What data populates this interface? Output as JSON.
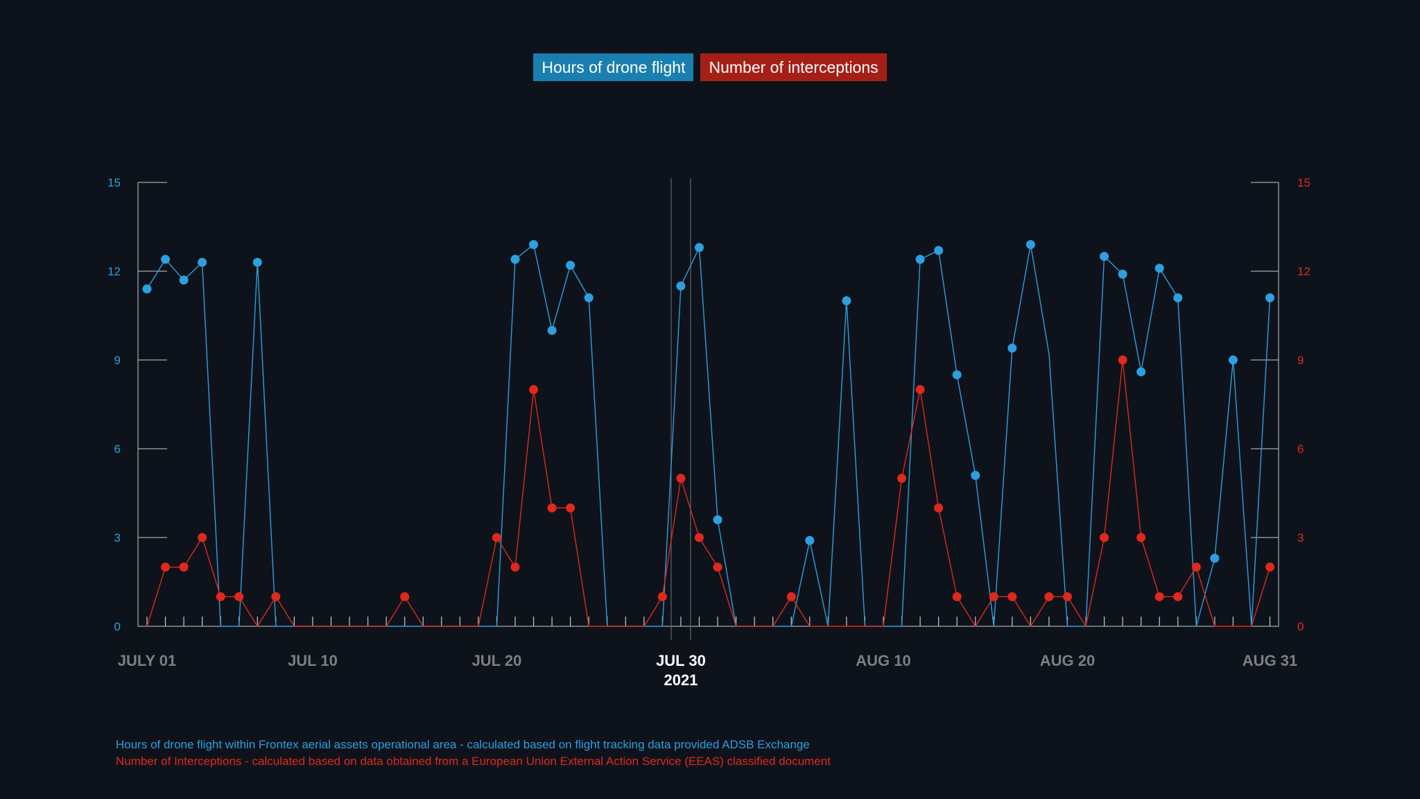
{
  "legend": {
    "hours_label": "Hours of drone flight",
    "intercepts_label": "Number of interceptions"
  },
  "notes": {
    "hours": "Hours of drone flight within Frontex aerial assets operational area - calculated based on flight tracking data provided ADSB Exchange",
    "intercepts": "Number of Interceptions - calculated based on data obtained from a European Union External Action Service (EEAS) classified document"
  },
  "colors": {
    "background": "#0e131b",
    "hours": "#2e9fe0",
    "intercepts": "#e0281d",
    "axis": "#c8ccd2",
    "date_label": "#7b7f86",
    "highlight": "#ffffff"
  },
  "chart_data": {
    "type": "line",
    "x": [
      "2021-07-01",
      "2021-07-02",
      "2021-07-03",
      "2021-07-04",
      "2021-07-05",
      "2021-07-06",
      "2021-07-07",
      "2021-07-08",
      "2021-07-09",
      "2021-07-10",
      "2021-07-11",
      "2021-07-12",
      "2021-07-13",
      "2021-07-14",
      "2021-07-15",
      "2021-07-16",
      "2021-07-17",
      "2021-07-18",
      "2021-07-19",
      "2021-07-20",
      "2021-07-21",
      "2021-07-22",
      "2021-07-23",
      "2021-07-24",
      "2021-07-25",
      "2021-07-26",
      "2021-07-27",
      "2021-07-28",
      "2021-07-29",
      "2021-07-30",
      "2021-07-31",
      "2021-08-01",
      "2021-08-02",
      "2021-08-03",
      "2021-08-04",
      "2021-08-05",
      "2021-08-06",
      "2021-08-07",
      "2021-08-08",
      "2021-08-09",
      "2021-08-10",
      "2021-08-11",
      "2021-08-12",
      "2021-08-13",
      "2021-08-14",
      "2021-08-15",
      "2021-08-16",
      "2021-08-17",
      "2021-08-18",
      "2021-08-19",
      "2021-08-20",
      "2021-08-21",
      "2021-08-22",
      "2021-08-23",
      "2021-08-24",
      "2021-08-25",
      "2021-08-26",
      "2021-08-27",
      "2021-08-28",
      "2021-08-29",
      "2021-08-30",
      "2021-08-31"
    ],
    "series": [
      {
        "name": "Hours of drone flight",
        "axis": "left",
        "values": [
          11.4,
          12.4,
          11.7,
          12.3,
          0,
          0,
          12.3,
          0,
          0,
          0,
          0,
          0,
          0,
          0,
          0,
          0,
          0,
          0,
          0,
          0,
          12.4,
          12.9,
          10.0,
          12.2,
          11.1,
          0,
          0,
          0,
          0,
          11.5,
          12.8,
          3.6,
          0,
          0,
          0,
          0,
          2.9,
          0,
          11.0,
          0,
          0,
          0,
          12.4,
          12.7,
          8.5,
          5.1,
          0,
          9.4,
          12.9,
          9.2,
          0,
          0,
          12.5,
          11.9,
          8.6,
          12.1,
          11.1,
          0,
          2.3,
          9.0,
          0,
          11.1
        ],
        "markers": [
          true,
          true,
          true,
          true,
          false,
          false,
          true,
          false,
          false,
          false,
          false,
          false,
          false,
          false,
          false,
          false,
          false,
          false,
          false,
          false,
          true,
          true,
          true,
          true,
          true,
          false,
          false,
          false,
          false,
          true,
          true,
          true,
          false,
          false,
          false,
          false,
          true,
          false,
          true,
          false,
          false,
          false,
          true,
          true,
          true,
          true,
          false,
          true,
          true,
          false,
          false,
          false,
          true,
          true,
          true,
          true,
          true,
          false,
          true,
          true,
          false,
          true
        ]
      },
      {
        "name": "Number of interceptions",
        "axis": "right",
        "values": [
          0,
          2,
          2,
          3,
          1,
          1,
          0,
          1,
          0,
          0,
          0,
          0,
          0,
          0,
          1,
          0,
          0,
          0,
          0,
          3,
          2,
          8,
          4,
          4,
          0,
          0,
          0,
          0,
          1,
          5,
          3,
          2,
          0,
          0,
          0,
          1,
          0,
          0,
          0,
          0,
          0,
          5,
          8,
          4,
          1,
          0,
          1,
          1,
          0,
          1,
          1,
          0,
          3,
          9,
          3,
          1,
          1,
          2,
          0,
          0,
          0,
          2
        ],
        "markers": [
          false,
          true,
          true,
          true,
          true,
          true,
          false,
          true,
          false,
          false,
          false,
          false,
          false,
          false,
          true,
          false,
          false,
          false,
          false,
          true,
          true,
          true,
          true,
          true,
          false,
          false,
          false,
          false,
          true,
          true,
          true,
          true,
          false,
          false,
          false,
          true,
          false,
          false,
          false,
          false,
          false,
          true,
          true,
          true,
          true,
          false,
          true,
          true,
          false,
          true,
          true,
          false,
          true,
          true,
          true,
          true,
          true,
          true,
          false,
          false,
          false,
          true
        ]
      }
    ],
    "y_left": {
      "range": [
        0,
        15
      ],
      "ticks": [
        "0",
        "3",
        "6",
        "9",
        "12",
        "15"
      ]
    },
    "y_right": {
      "range": [
        0,
        15
      ],
      "ticks": [
        "0",
        "3",
        "6",
        "9",
        "12",
        "15"
      ]
    },
    "date_labels": [
      {
        "x": "2021-07-01",
        "text": "JULY 01"
      },
      {
        "x": "2021-07-10",
        "text": "JUL 10"
      },
      {
        "x": "2021-07-20",
        "text": "JUL 20"
      },
      {
        "x": "2021-07-30",
        "text": "JUL 30",
        "subtext": "2021",
        "highlight": true
      },
      {
        "x": "2021-08-10",
        "text": "AUG 10"
      },
      {
        "x": "2021-08-20",
        "text": "AUG 20"
      },
      {
        "x": "2021-08-31",
        "text": "AUG 31"
      }
    ],
    "legend_position": "top-center",
    "grid": false
  }
}
